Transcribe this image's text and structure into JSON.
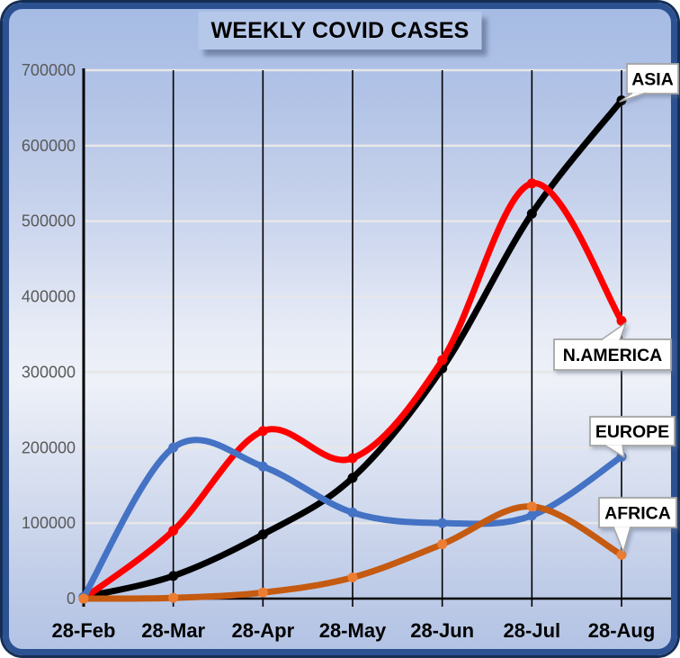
{
  "title": {
    "text": "WEEKLY COVID CASES"
  },
  "chart_data": {
    "type": "line",
    "title": "WEEKLY COVID CASES",
    "categories": [
      "28-Feb",
      "28-Mar",
      "28-Apr",
      "28-May",
      "28-Jun",
      "28-Jul",
      "28-Aug"
    ],
    "series": [
      {
        "name": "ASIA",
        "color": "#000000",
        "marker_color": "#000000",
        "values": [
          2000,
          30000,
          85000,
          160000,
          305000,
          510000,
          660000
        ]
      },
      {
        "name": "N.AMERICA",
        "color": "#ff0000",
        "marker_color": "#ff0000",
        "values": [
          0,
          90000,
          222000,
          186000,
          316000,
          550000,
          368000
        ]
      },
      {
        "name": "EUROPE",
        "color": "#4472c4",
        "marker_color": "#4472c4",
        "values": [
          2000,
          200000,
          175000,
          114000,
          100000,
          110000,
          188000
        ]
      },
      {
        "name": "AFRICA",
        "color": "#c55a11",
        "marker_color": "#ed7d31",
        "values": [
          0,
          1000,
          8000,
          28000,
          72000,
          122000,
          58000
        ]
      }
    ],
    "ylim": [
      0,
      700000
    ],
    "ytick_step": 100000,
    "ytick_labels": [
      "0",
      "100000",
      "200000",
      "300000",
      "400000",
      "500000",
      "600000",
      "700000"
    ],
    "grid": {
      "horizontal": true,
      "vertical": true
    },
    "legend_position": "series-callout-labels-right",
    "line_style": "smooth-with-markers"
  },
  "style": {
    "frame_border": "#2c5191",
    "frame_outer_ring": "#152e56",
    "title_bg": "#b6c8ea",
    "grid_h_color": "#e7e7e7",
    "grid_v_color": "#000000",
    "axis_color": "#000000",
    "ytick_label_color": "#595959",
    "callout_bg": "#ffffff",
    "callout_border": "#a6a6a6"
  }
}
